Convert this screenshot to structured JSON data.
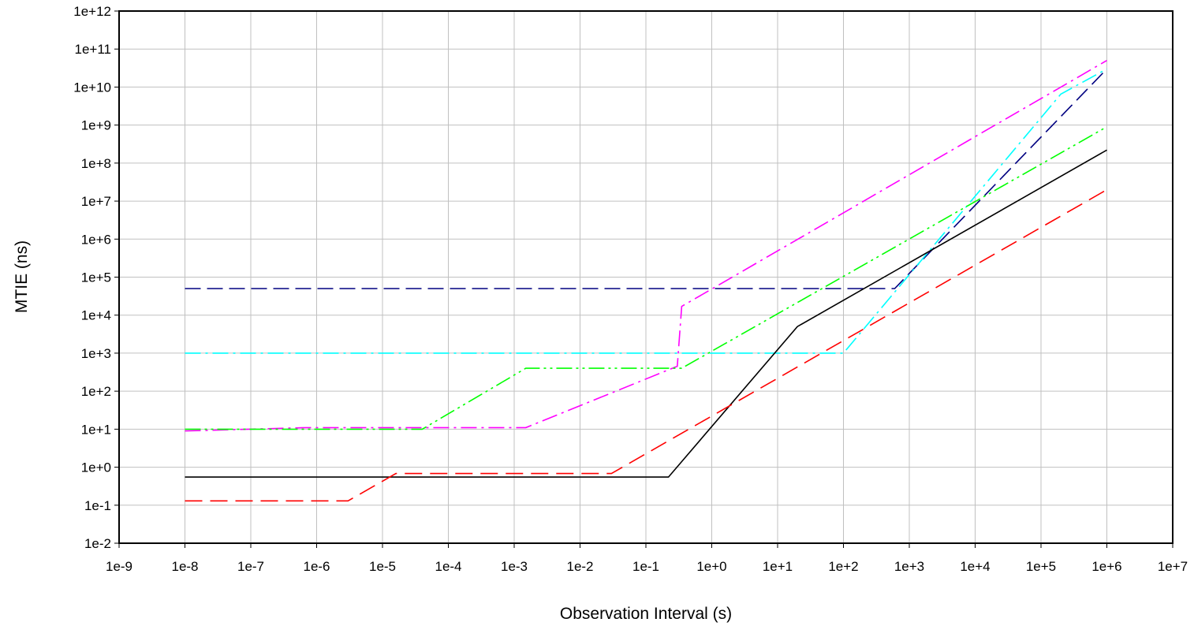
{
  "chart_data": {
    "type": "line",
    "title": "",
    "xlabel": "Observation Interval (s)",
    "ylabel": "MTIE (ns)",
    "x_scale": "log",
    "y_scale": "log",
    "xlim": [
      1e-09,
      10000000.0
    ],
    "ylim": [
      0.01,
      1000000000000.0
    ],
    "grid": true,
    "legend": "none",
    "x_tick_labels": [
      "1e-9",
      "1e-8",
      "1e-7",
      "1e-6",
      "1e-5",
      "1e-4",
      "1e-3",
      "1e-2",
      "1e-1",
      "1e+0",
      "1e+1",
      "1e+2",
      "1e+3",
      "1e+4",
      "1e+5",
      "1e+6",
      "1e+7"
    ],
    "y_tick_labels": [
      "1e-2",
      "1e-1",
      "1e+0",
      "1e+1",
      "1e+2",
      "1e+3",
      "1e+4",
      "1e+5",
      "1e+6",
      "1e+7",
      "1e+8",
      "1e+9",
      "1e+10",
      "1e+11",
      "1e+12"
    ],
    "series": [
      {
        "color": "#000080",
        "dash": "long-dash",
        "x": [
          1e-08,
          600,
          1000000.0
        ],
        "y": [
          50000,
          50000,
          30000000000.0
        ]
      },
      {
        "color": "#00ffff",
        "dash": "dash-dot",
        "x": [
          1e-08,
          100,
          200000.0,
          1000000.0
        ],
        "y": [
          1000,
          1000,
          6500000000.0,
          30000000000.0
        ]
      },
      {
        "color": "#ff00ff",
        "dash": "dash-dot",
        "x": [
          1e-08,
          7e-07,
          0.0015,
          0.3,
          0.35,
          1000000.0
        ],
        "y": [
          9,
          11,
          11,
          450,
          17000,
          50000000000.0
        ]
      },
      {
        "color": "#00ff00",
        "dash": "dash-dot-dot",
        "x": [
          1e-08,
          4e-05,
          0.0015,
          0.35,
          1000000.0
        ],
        "y": [
          10,
          10,
          400,
          400,
          900000000.0
        ]
      },
      {
        "color": "#000000",
        "dash": "solid",
        "x": [
          1e-08,
          0.22,
          20,
          1000000.0
        ],
        "y": [
          0.55,
          0.55,
          5000,
          220000000.0
        ]
      },
      {
        "color": "#ff0000",
        "dash": "dashed",
        "x": [
          1e-08,
          3e-06,
          1.6e-05,
          0.03,
          1000000.0
        ],
        "y": [
          0.13,
          0.13,
          0.68,
          0.68,
          20000000.0
        ]
      }
    ]
  }
}
